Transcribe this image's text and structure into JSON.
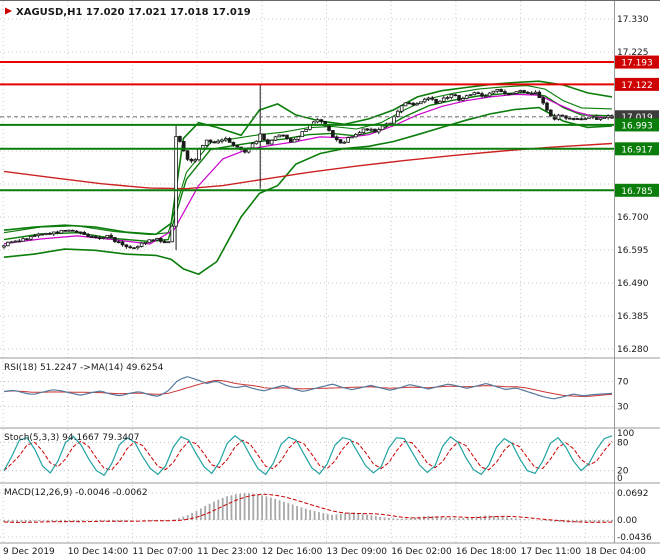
{
  "chart_data": {
    "type": "candlestick",
    "symbol": "XAGUSD",
    "timeframe": "H1",
    "header_line": "XAGUSD,H1 17.020 17.021 17.018 17.019",
    "quote": {
      "open": "17.020",
      "high": "17.021",
      "low": "17.018",
      "close": "17.019"
    },
    "colors": {
      "up_candle": "#ffffff",
      "down_candle": "#1a1a1a",
      "candle_stroke": "#1a1a1a",
      "resistance": "#e60000",
      "support": "#0a7d0a",
      "band_green": "#0a7d0a",
      "ma_red": "#cc2222",
      "ma_magenta": "#cc00cc",
      "rsi_main": "#557b9e",
      "rsi_signal": "#cc3333",
      "stoch_k": "#20a2a2",
      "stoch_d": "#cc0000",
      "macd_hist": "#a8a8a8",
      "macd_signal": "#cc0000",
      "badge_red": "#cf0000",
      "badge_green": "#0a7d0a",
      "badge_current": "#3c3c3c"
    },
    "x_labels": [
      "9 Dec 2019",
      "10 Dec 14:00",
      "11 Dec 07:00",
      "11 Dec 23:00",
      "12 Dec 16:00",
      "13 Dec 09:00",
      "16 Dec 02:00",
      "16 Dec 18:00",
      "17 Dec 11:00",
      "18 Dec 04:00"
    ],
    "y_axis": {
      "visible_ticks": [
        {
          "label": "17.330",
          "price": 17.33
        },
        {
          "label": "17.225",
          "price": 17.225
        },
        {
          "label": "16.700",
          "price": 16.7
        },
        {
          "label": "16.595",
          "price": 16.595
        },
        {
          "label": "16.490",
          "price": 16.49
        },
        {
          "label": "16.385",
          "price": 16.385
        },
        {
          "label": "16.280",
          "price": 16.28
        }
      ],
      "grid_prices": [
        17.33,
        17.225,
        17.12,
        17.015,
        16.91,
        16.805,
        16.7,
        16.595,
        16.49,
        16.385,
        16.28
      ]
    },
    "price_badges": [
      {
        "label": "17.193",
        "price": 17.193,
        "color": "#cf0000"
      },
      {
        "label": "17.122",
        "price": 17.122,
        "color": "#cf0000"
      },
      {
        "label": "17.019",
        "price": 17.019,
        "color": "#3c3c3c"
      },
      {
        "label": "16.993",
        "price": 16.993,
        "color": "#0a7d0a"
      },
      {
        "label": "16.917",
        "price": 16.917,
        "color": "#0a7d0a"
      },
      {
        "label": "16.785",
        "price": 16.785,
        "color": "#0a7d0a"
      }
    ],
    "horizontal_lines": [
      {
        "price": 17.193,
        "color": "#e60000",
        "width": 2
      },
      {
        "price": 17.122,
        "color": "#e60000",
        "width": 2
      },
      {
        "price": 16.993,
        "color": "#0a7d0a",
        "width": 2
      },
      {
        "price": 16.917,
        "color": "#0a7d0a",
        "width": 2
      },
      {
        "price": 16.785,
        "color": "#0a7d0a",
        "width": 2
      },
      {
        "price": 17.019,
        "color": "#777777",
        "width": 1,
        "dash": "4 3"
      }
    ],
    "price_path": [
      [
        0,
        16.612
      ],
      [
        0.03,
        16.628
      ],
      [
        0.06,
        16.645
      ],
      [
        0.09,
        16.652
      ],
      [
        0.11,
        16.66
      ],
      [
        0.13,
        16.645
      ],
      [
        0.15,
        16.632
      ],
      [
        0.17,
        16.64
      ],
      [
        0.195,
        16.61
      ],
      [
        0.215,
        16.603
      ],
      [
        0.235,
        16.625
      ],
      [
        0.255,
        16.63
      ],
      [
        0.268,
        16.615
      ],
      [
        0.276,
        16.64
      ],
      [
        0.283,
        16.96
      ],
      [
        0.292,
        16.935
      ],
      [
        0.3,
        16.89
      ],
      [
        0.312,
        16.875
      ],
      [
        0.322,
        16.92
      ],
      [
        0.335,
        16.945
      ],
      [
        0.35,
        16.935
      ],
      [
        0.365,
        16.95
      ],
      [
        0.38,
        16.925
      ],
      [
        0.395,
        16.905
      ],
      [
        0.408,
        16.93
      ],
      [
        0.418,
        16.95
      ],
      [
        0.423,
        16.975
      ],
      [
        0.43,
        16.925
      ],
      [
        0.44,
        16.945
      ],
      [
        0.455,
        16.965
      ],
      [
        0.47,
        16.94
      ],
      [
        0.485,
        16.96
      ],
      [
        0.5,
        16.985
      ],
      [
        0.515,
        17.01
      ],
      [
        0.528,
        16.995
      ],
      [
        0.54,
        16.96
      ],
      [
        0.552,
        16.93
      ],
      [
        0.565,
        16.95
      ],
      [
        0.58,
        16.965
      ],
      [
        0.595,
        16.98
      ],
      [
        0.61,
        16.972
      ],
      [
        0.625,
        16.992
      ],
      [
        0.638,
        17.005
      ],
      [
        0.65,
        17.045
      ],
      [
        0.662,
        17.065
      ],
      [
        0.675,
        17.05
      ],
      [
        0.688,
        17.072
      ],
      [
        0.7,
        17.085
      ],
      [
        0.712,
        17.062
      ],
      [
        0.725,
        17.078
      ],
      [
        0.738,
        17.09
      ],
      [
        0.75,
        17.072
      ],
      [
        0.762,
        17.088
      ],
      [
        0.775,
        17.098
      ],
      [
        0.788,
        17.082
      ],
      [
        0.8,
        17.095
      ],
      [
        0.812,
        17.105
      ],
      [
        0.825,
        17.088
      ],
      [
        0.838,
        17.098
      ],
      [
        0.85,
        17.105
      ],
      [
        0.862,
        17.092
      ],
      [
        0.872,
        17.098
      ],
      [
        0.882,
        17.075
      ],
      [
        0.892,
        17.04
      ],
      [
        0.902,
        17.012
      ],
      [
        0.915,
        17.022
      ],
      [
        0.928,
        17.008
      ],
      [
        0.94,
        17.018
      ],
      [
        0.952,
        17.01
      ],
      [
        0.965,
        17.02
      ],
      [
        0.978,
        17.012
      ],
      [
        0.99,
        17.02
      ],
      [
        1,
        17.019
      ]
    ],
    "spike_bars": [
      [
        0.281,
        16.99,
        16.595
      ],
      [
        0.421,
        17.125,
        16.79
      ]
    ],
    "overlays": {
      "bb_upper": [
        [
          0,
          16.658
        ],
        [
          0.05,
          16.668
        ],
        [
          0.1,
          16.674
        ],
        [
          0.15,
          16.668
        ],
        [
          0.2,
          16.652
        ],
        [
          0.25,
          16.645
        ],
        [
          0.275,
          16.68
        ],
        [
          0.295,
          16.95
        ],
        [
          0.32,
          17.0
        ],
        [
          0.35,
          16.985
        ],
        [
          0.39,
          16.96
        ],
        [
          0.42,
          17.04
        ],
        [
          0.45,
          17.06
        ],
        [
          0.48,
          17.025
        ],
        [
          0.52,
          17.005
        ],
        [
          0.56,
          16.995
        ],
        [
          0.6,
          17.012
        ],
        [
          0.64,
          17.04
        ],
        [
          0.68,
          17.082
        ],
        [
          0.72,
          17.102
        ],
        [
          0.76,
          17.112
        ],
        [
          0.8,
          17.122
        ],
        [
          0.84,
          17.128
        ],
        [
          0.88,
          17.132
        ],
        [
          0.92,
          17.12
        ],
        [
          0.96,
          17.095
        ],
        [
          1,
          17.082
        ]
      ],
      "bb_lower": [
        [
          0,
          16.572
        ],
        [
          0.05,
          16.582
        ],
        [
          0.1,
          16.598
        ],
        [
          0.15,
          16.594
        ],
        [
          0.2,
          16.582
        ],
        [
          0.25,
          16.578
        ],
        [
          0.275,
          16.565
        ],
        [
          0.295,
          16.535
        ],
        [
          0.32,
          16.518
        ],
        [
          0.35,
          16.558
        ],
        [
          0.39,
          16.7
        ],
        [
          0.42,
          16.775
        ],
        [
          0.45,
          16.8
        ],
        [
          0.48,
          16.868
        ],
        [
          0.52,
          16.902
        ],
        [
          0.56,
          16.918
        ],
        [
          0.6,
          16.925
        ],
        [
          0.64,
          16.94
        ],
        [
          0.68,
          16.962
        ],
        [
          0.72,
          16.985
        ],
        [
          0.76,
          17.008
        ],
        [
          0.8,
          17.028
        ],
        [
          0.84,
          17.042
        ],
        [
          0.88,
          17.048
        ],
        [
          0.92,
          17.005
        ],
        [
          0.96,
          16.985
        ],
        [
          1,
          16.99
        ]
      ],
      "green_ma": [
        [
          0,
          16.628
        ],
        [
          0.06,
          16.646
        ],
        [
          0.12,
          16.65
        ],
        [
          0.18,
          16.632
        ],
        [
          0.24,
          16.622
        ],
        [
          0.27,
          16.628
        ],
        [
          0.3,
          16.82
        ],
        [
          0.34,
          16.915
        ],
        [
          0.38,
          16.928
        ],
        [
          0.42,
          16.94
        ],
        [
          0.46,
          16.948
        ],
        [
          0.5,
          16.962
        ],
        [
          0.54,
          16.966
        ],
        [
          0.58,
          16.958
        ],
        [
          0.62,
          16.978
        ],
        [
          0.66,
          17.02
        ],
        [
          0.7,
          17.055
        ],
        [
          0.74,
          17.072
        ],
        [
          0.78,
          17.085
        ],
        [
          0.82,
          17.092
        ],
        [
          0.86,
          17.096
        ],
        [
          0.89,
          17.085
        ],
        [
          0.92,
          17.048
        ],
        [
          0.95,
          17.025
        ],
        [
          1,
          17.022
        ]
      ],
      "red_ma": [
        [
          0,
          16.845
        ],
        [
          0.08,
          16.825
        ],
        [
          0.16,
          16.806
        ],
        [
          0.24,
          16.792
        ],
        [
          0.3,
          16.79
        ],
        [
          0.36,
          16.8
        ],
        [
          0.42,
          16.818
        ],
        [
          0.5,
          16.842
        ],
        [
          0.58,
          16.862
        ],
        [
          0.66,
          16.88
        ],
        [
          0.74,
          16.896
        ],
        [
          0.82,
          16.91
        ],
        [
          0.9,
          16.922
        ],
        [
          1,
          16.934
        ]
      ],
      "magenta_ma": [
        [
          0,
          16.615
        ],
        [
          0.06,
          16.63
        ],
        [
          0.12,
          16.64
        ],
        [
          0.18,
          16.628
        ],
        [
          0.24,
          16.614
        ],
        [
          0.28,
          16.66
        ],
        [
          0.32,
          16.8
        ],
        [
          0.36,
          16.885
        ],
        [
          0.4,
          16.915
        ],
        [
          0.44,
          16.928
        ],
        [
          0.48,
          16.94
        ],
        [
          0.52,
          16.955
        ],
        [
          0.56,
          16.952
        ],
        [
          0.6,
          16.962
        ],
        [
          0.64,
          16.99
        ],
        [
          0.68,
          17.025
        ],
        [
          0.72,
          17.052
        ],
        [
          0.76,
          17.07
        ],
        [
          0.8,
          17.082
        ],
        [
          0.84,
          17.09
        ],
        [
          0.88,
          17.088
        ],
        [
          0.91,
          17.06
        ],
        [
          0.94,
          17.035
        ],
        [
          0.97,
          17.02
        ],
        [
          1,
          17.016
        ]
      ]
    },
    "indicators": {
      "rsi": {
        "label": "RSI(18) 51.2247  ->MA(14) 49.6254",
        "levels": [
          70,
          30
        ],
        "axis_labels": [
          {
            "label": "70",
            "value": 70
          },
          {
            "label": "30",
            "value": 30
          }
        ],
        "values": [
          54,
          56,
          52,
          49,
          53,
          57,
          55,
          51,
          48,
          52,
          55,
          50,
          47,
          51,
          54,
          49,
          46,
          55,
          72,
          78,
          73,
          67,
          71,
          64,
          60,
          63,
          58,
          55,
          60,
          64,
          58,
          54,
          58,
          62,
          66,
          61,
          57,
          60,
          64,
          60,
          56,
          60,
          65,
          62,
          58,
          62,
          66,
          63,
          59,
          63,
          67,
          62,
          57,
          60,
          55,
          50,
          45,
          42,
          46,
          50,
          47,
          49,
          50,
          51
        ]
      },
      "stoch": {
        "label": "Stoch(5,3,3) 94.1667 79.3407",
        "levels": [
          80,
          20
        ],
        "axis_labels": [
          {
            "label": "100",
            "value": 100
          },
          {
            "label": "80",
            "value": 80
          },
          {
            "label": "20",
            "value": 20
          },
          {
            "label": "0",
            "value": 0
          }
        ],
        "k_values": [
          20,
          50,
          85,
          90,
          65,
          30,
          15,
          40,
          80,
          93,
          75,
          45,
          20,
          10,
          35,
          75,
          90,
          80,
          50,
          25,
          12,
          30,
          70,
          92,
          85,
          55,
          28,
          14,
          38,
          78,
          94,
          82,
          52,
          24,
          12,
          36,
          76,
          91,
          84,
          54,
          26,
          13,
          34,
          74,
          90,
          86,
          58,
          30,
          15,
          28,
          68,
          90,
          88,
          60,
          32,
          16,
          30,
          72,
          92,
          80,
          48,
          22,
          12,
          32,
          70,
          88,
          78,
          46,
          20,
          14,
          40,
          78,
          90,
          70,
          40,
          20,
          35,
          65,
          88,
          94
        ]
      },
      "macd": {
        "label": "MACD(12,26,9) -0.0046 -0.0062",
        "axis_labels": [
          {
            "label": "0.0692",
            "value": 0.0692
          },
          {
            "label": "0.00",
            "value": 0
          },
          {
            "label": "-0.0436",
            "value": -0.0436
          }
        ],
        "values": [
          -0.005,
          -0.007,
          -0.006,
          -0.004,
          -0.002,
          -0.004,
          -0.006,
          -0.005,
          -0.003,
          -0.001,
          -0.003,
          -0.005,
          -0.004,
          -0.002,
          0,
          -0.002,
          -0.004,
          -0.002,
          0.004,
          0.012,
          0.024,
          0.038,
          0.05,
          0.06,
          0.066,
          0.069,
          0.067,
          0.062,
          0.055,
          0.047,
          0.039,
          0.031,
          0.024,
          0.018,
          0.013,
          0.016,
          0.02,
          0.017,
          0.012,
          0.008,
          0.005,
          0.003,
          0.005,
          0.008,
          0.011,
          0.009,
          0.006,
          0.004,
          0.006,
          0.009,
          0.012,
          0.01,
          0.007,
          0.004,
          0.002,
          0,
          -0.002,
          -0.004,
          -0.006,
          -0.007,
          -0.006,
          -0.005,
          -0.005,
          -0.0046
        ]
      }
    }
  }
}
